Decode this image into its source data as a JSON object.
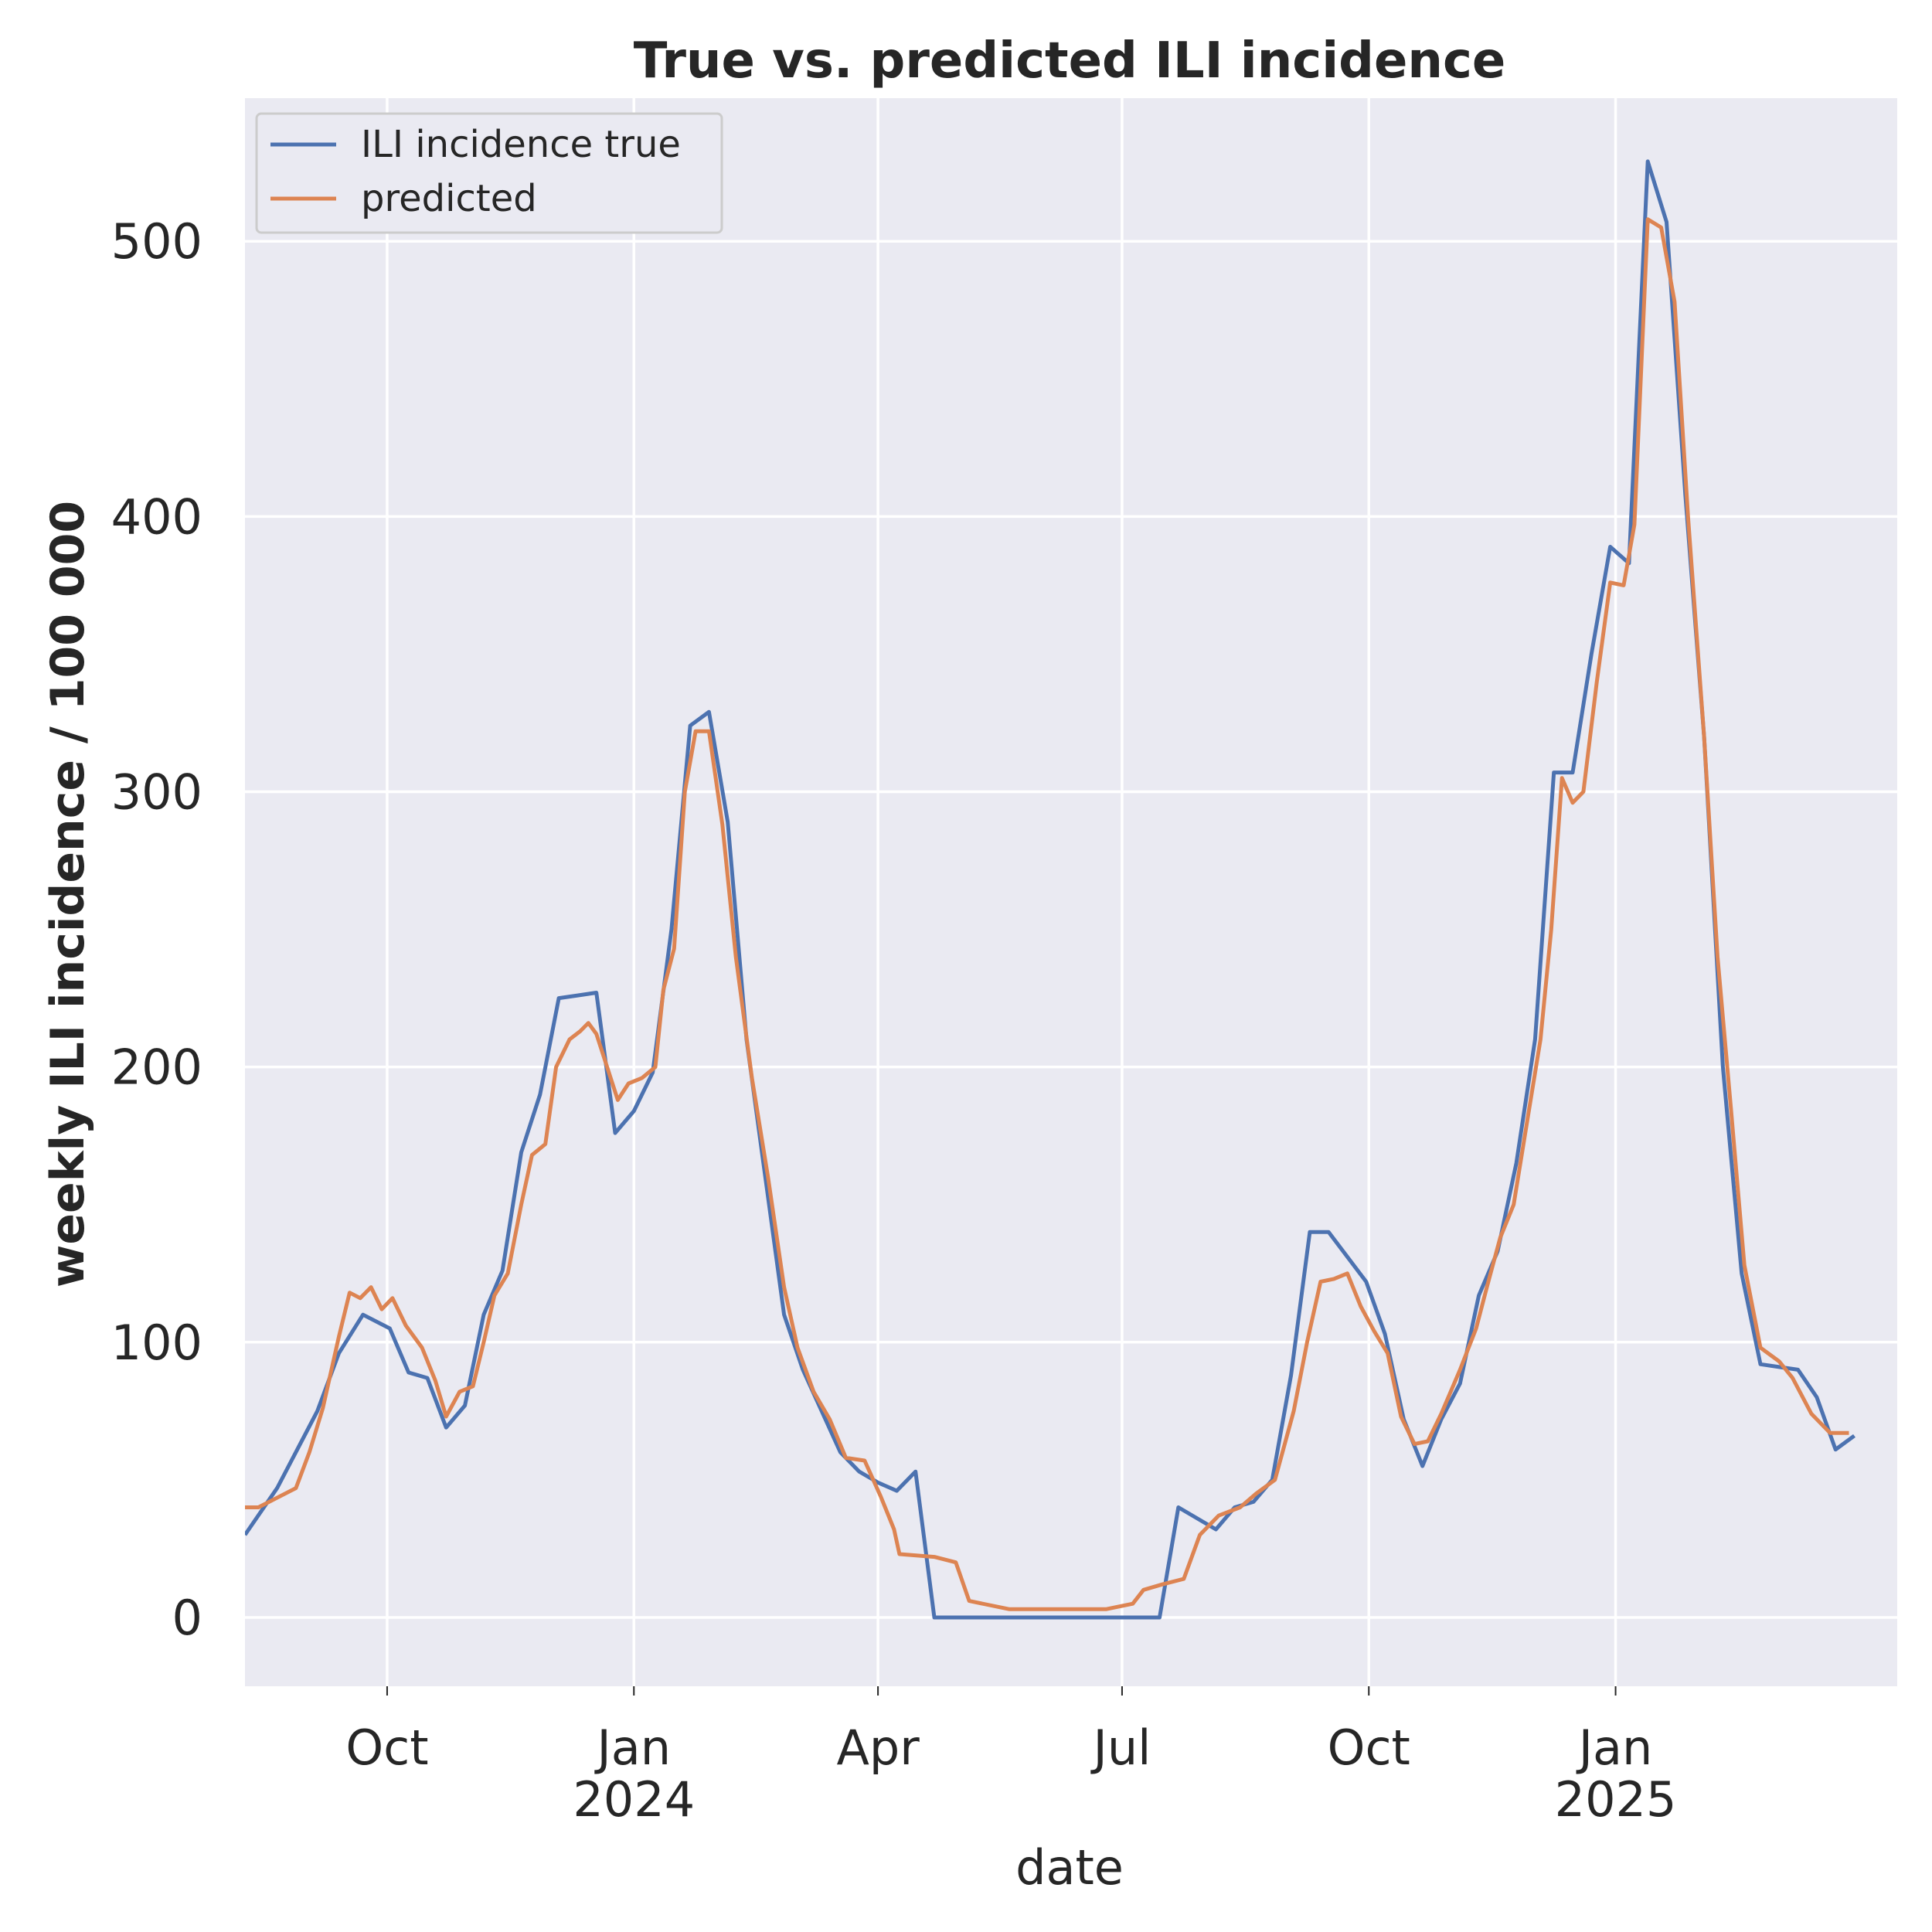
{
  "chart_data": {
    "type": "line",
    "title": "True vs. predicted ILI incidence",
    "xlabel": "date",
    "ylabel": "weekly ILI incidence / 100 000",
    "xlim": [
      "2023-08-09",
      "2025-04-16"
    ],
    "ylim": [
      -25,
      552
    ],
    "grid": true,
    "background": "#eaeaf2",
    "legend_position": "top-left",
    "yticks": [
      {
        "value": 0,
        "label": "0"
      },
      {
        "value": 100,
        "label": "100"
      },
      {
        "value": 200,
        "label": "200"
      },
      {
        "value": 300,
        "label": "300"
      },
      {
        "value": 400,
        "label": "400"
      },
      {
        "value": 500,
        "label": "500"
      }
    ],
    "xticks": [
      {
        "date": "2023-10-01",
        "label": "Oct",
        "sublabel": ""
      },
      {
        "date": "2024-01-01",
        "label": "Jan",
        "sublabel": "2024"
      },
      {
        "date": "2024-04-01",
        "label": "Apr",
        "sublabel": ""
      },
      {
        "date": "2024-07-01",
        "label": "Jul",
        "sublabel": ""
      },
      {
        "date": "2024-10-01",
        "label": "Oct",
        "sublabel": ""
      },
      {
        "date": "2025-01-01",
        "label": "Jan",
        "sublabel": "2025"
      }
    ],
    "series": [
      {
        "name": "ILI incidence true",
        "color": "#4c72b0",
        "points": [
          [
            "2023-08-09",
            30
          ],
          [
            "2023-08-21",
            47
          ],
          [
            "2023-09-05",
            75
          ],
          [
            "2023-09-13",
            96
          ],
          [
            "2023-09-22",
            110
          ],
          [
            "2023-10-02",
            105
          ],
          [
            "2023-10-09",
            89
          ],
          [
            "2023-10-16",
            87
          ],
          [
            "2023-10-23",
            69
          ],
          [
            "2023-10-30",
            77
          ],
          [
            "2023-11-06",
            110
          ],
          [
            "2023-11-13",
            126
          ],
          [
            "2023-11-20",
            169
          ],
          [
            "2023-11-27",
            190
          ],
          [
            "2023-12-04",
            225
          ],
          [
            "2023-12-11",
            226
          ],
          [
            "2023-12-18",
            227
          ],
          [
            "2023-12-25",
            176
          ],
          [
            "2024-01-01",
            184
          ],
          [
            "2024-01-08",
            198
          ],
          [
            "2024-01-15",
            250
          ],
          [
            "2024-01-22",
            324
          ],
          [
            "2024-01-29",
            329
          ],
          [
            "2024-02-05",
            289
          ],
          [
            "2024-02-12",
            210
          ],
          [
            "2024-02-19",
            160
          ],
          [
            "2024-02-26",
            110
          ],
          [
            "2024-03-04",
            90
          ],
          [
            "2024-03-11",
            75
          ],
          [
            "2024-03-18",
            60
          ],
          [
            "2024-03-25",
            53
          ],
          [
            "2024-04-01",
            49
          ],
          [
            "2024-04-08",
            46
          ],
          [
            "2024-04-15",
            53
          ],
          [
            "2024-04-22",
            0
          ],
          [
            "2024-07-15",
            0
          ],
          [
            "2024-07-22",
            40
          ],
          [
            "2024-08-05",
            32
          ],
          [
            "2024-08-12",
            40
          ],
          [
            "2024-08-19",
            42
          ],
          [
            "2024-08-26",
            50
          ],
          [
            "2024-09-02",
            88
          ],
          [
            "2024-09-09",
            140
          ],
          [
            "2024-09-16",
            140
          ],
          [
            "2024-09-23",
            131
          ],
          [
            "2024-09-30",
            122
          ],
          [
            "2024-10-07",
            103
          ],
          [
            "2024-10-14",
            72
          ],
          [
            "2024-10-21",
            55
          ],
          [
            "2024-10-28",
            72
          ],
          [
            "2024-11-04",
            85
          ],
          [
            "2024-11-11",
            117
          ],
          [
            "2024-11-18",
            133
          ],
          [
            "2024-11-25",
            165
          ],
          [
            "2024-12-02",
            210
          ],
          [
            "2024-12-09",
            307
          ],
          [
            "2024-12-16",
            307
          ],
          [
            "2024-12-23",
            350
          ],
          [
            "2024-12-30",
            389
          ],
          [
            "2025-01-06",
            383
          ],
          [
            "2025-01-13",
            529
          ],
          [
            "2025-01-20",
            507
          ],
          [
            "2025-01-27",
            408
          ],
          [
            "2025-02-03",
            320
          ],
          [
            "2025-02-10",
            200
          ],
          [
            "2025-02-17",
            125
          ],
          [
            "2025-02-24",
            92
          ],
          [
            "2025-03-03",
            91
          ],
          [
            "2025-03-10",
            90
          ],
          [
            "2025-03-17",
            80
          ],
          [
            "2025-03-24",
            61
          ],
          [
            "2025-03-31",
            66
          ]
        ]
      },
      {
        "name": "predicted",
        "color": "#dd8452",
        "points": [
          [
            "2023-08-09",
            40
          ],
          [
            "2023-08-14",
            40
          ],
          [
            "2023-08-20",
            43
          ],
          [
            "2023-08-28",
            47
          ],
          [
            "2023-09-02",
            60
          ],
          [
            "2023-09-07",
            76
          ],
          [
            "2023-09-13",
            102
          ],
          [
            "2023-09-17",
            118
          ],
          [
            "2023-09-21",
            116
          ],
          [
            "2023-09-25",
            120
          ],
          [
            "2023-09-29",
            112
          ],
          [
            "2023-10-03",
            116
          ],
          [
            "2023-10-08",
            106
          ],
          [
            "2023-10-14",
            98
          ],
          [
            "2023-10-19",
            86
          ],
          [
            "2023-10-23",
            73
          ],
          [
            "2023-10-28",
            82
          ],
          [
            "2023-11-02",
            84
          ],
          [
            "2023-11-06",
            100
          ],
          [
            "2023-11-10",
            117
          ],
          [
            "2023-11-15",
            125
          ],
          [
            "2023-11-20",
            150
          ],
          [
            "2023-11-24",
            168
          ],
          [
            "2023-11-29",
            172
          ],
          [
            "2023-12-03",
            200
          ],
          [
            "2023-12-08",
            210
          ],
          [
            "2023-12-12",
            213
          ],
          [
            "2023-12-15",
            216
          ],
          [
            "2023-12-18",
            212
          ],
          [
            "2023-12-22",
            200
          ],
          [
            "2023-12-26",
            188
          ],
          [
            "2023-12-30",
            194
          ],
          [
            "2024-01-04",
            196
          ],
          [
            "2024-01-09",
            200
          ],
          [
            "2024-01-12",
            228
          ],
          [
            "2024-01-16",
            243
          ],
          [
            "2024-01-20",
            300
          ],
          [
            "2024-01-24",
            322
          ],
          [
            "2024-01-29",
            322
          ],
          [
            "2024-02-03",
            288
          ],
          [
            "2024-02-08",
            240
          ],
          [
            "2024-02-14",
            196
          ],
          [
            "2024-02-20",
            160
          ],
          [
            "2024-02-26",
            120
          ],
          [
            "2024-03-02",
            98
          ],
          [
            "2024-03-08",
            82
          ],
          [
            "2024-03-14",
            72
          ],
          [
            "2024-03-20",
            58
          ],
          [
            "2024-03-27",
            57
          ],
          [
            "2024-04-02",
            44
          ],
          [
            "2024-04-07",
            32
          ],
          [
            "2024-04-09",
            23
          ],
          [
            "2024-04-22",
            22
          ],
          [
            "2024-04-30",
            20
          ],
          [
            "2024-05-05",
            6
          ],
          [
            "2024-05-20",
            3
          ],
          [
            "2024-06-05",
            3
          ],
          [
            "2024-06-25",
            3
          ],
          [
            "2024-07-05",
            5
          ],
          [
            "2024-07-09",
            10
          ],
          [
            "2024-07-16",
            12
          ],
          [
            "2024-07-24",
            14
          ],
          [
            "2024-07-30",
            30
          ],
          [
            "2024-08-06",
            37
          ],
          [
            "2024-08-14",
            40
          ],
          [
            "2024-08-20",
            45
          ],
          [
            "2024-08-27",
            50
          ],
          [
            "2024-09-03",
            75
          ],
          [
            "2024-09-08",
            100
          ],
          [
            "2024-09-13",
            122
          ],
          [
            "2024-09-18",
            123
          ],
          [
            "2024-09-23",
            125
          ],
          [
            "2024-09-28",
            113
          ],
          [
            "2024-10-03",
            104
          ],
          [
            "2024-10-08",
            96
          ],
          [
            "2024-10-13",
            73
          ],
          [
            "2024-10-18",
            63
          ],
          [
            "2024-10-23",
            64
          ],
          [
            "2024-10-28",
            74
          ],
          [
            "2024-11-04",
            90
          ],
          [
            "2024-11-10",
            105
          ],
          [
            "2024-11-14",
            120
          ],
          [
            "2024-11-19",
            138
          ],
          [
            "2024-11-24",
            150
          ],
          [
            "2024-11-29",
            180
          ],
          [
            "2024-12-04",
            210
          ],
          [
            "2024-12-08",
            250
          ],
          [
            "2024-12-12",
            305
          ],
          [
            "2024-12-16",
            296
          ],
          [
            "2024-12-20",
            300
          ],
          [
            "2024-12-25",
            340
          ],
          [
            "2024-12-30",
            376
          ],
          [
            "2025-01-04",
            375
          ],
          [
            "2025-01-08",
            397
          ],
          [
            "2025-01-13",
            508
          ],
          [
            "2025-01-18",
            505
          ],
          [
            "2025-01-23",
            478
          ],
          [
            "2025-01-28",
            400
          ],
          [
            "2025-02-03",
            320
          ],
          [
            "2025-02-08",
            240
          ],
          [
            "2025-02-13",
            185
          ],
          [
            "2025-02-18",
            128
          ],
          [
            "2025-02-24",
            98
          ],
          [
            "2025-03-03",
            93
          ],
          [
            "2025-03-08",
            87
          ],
          [
            "2025-03-15",
            74
          ],
          [
            "2025-03-22",
            67
          ],
          [
            "2025-03-29",
            67
          ]
        ]
      }
    ]
  }
}
